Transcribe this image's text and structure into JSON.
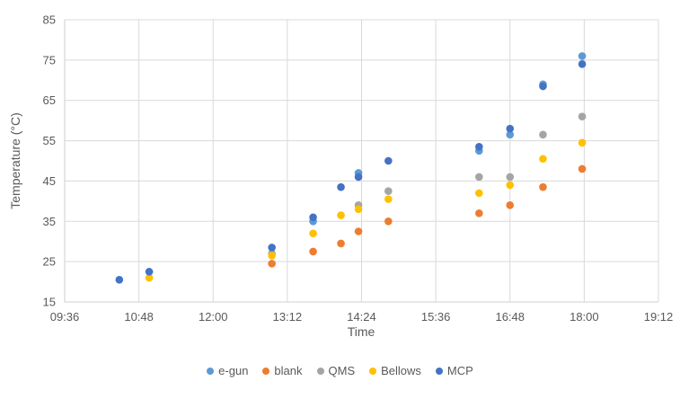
{
  "chart_data": {
    "type": "scatter",
    "title": "",
    "xlabel": "Time",
    "ylabel": "Temperature (°C)",
    "x_tick_labels": [
      "09:36",
      "10:48",
      "12:00",
      "13:12",
      "14:24",
      "15:36",
      "16:48",
      "18:00",
      "19:12"
    ],
    "x_axis_minutes": [
      576,
      1152
    ],
    "y_ticks": [
      15,
      25,
      35,
      45,
      55,
      65,
      75,
      85
    ],
    "ylim": [
      15,
      85
    ],
    "grid": true,
    "legend_position": "bottom",
    "marker": "circle",
    "colors": {
      "e-gun": "#5B9BD5",
      "blank": "#ED7D31",
      "QMS": "#A5A5A5",
      "Bellows": "#FFC000",
      "MCP": "#4472C4"
    },
    "text_color": "#595959",
    "gridline_color": "#D9D9D9",
    "axis_line_color": "#D0CECE",
    "series": [
      {
        "name": "e-gun",
        "color": "#5B9BD5",
        "points": [
          [
            "13:37",
            35
          ],
          [
            "14:21",
            47
          ],
          [
            "16:18",
            52.5
          ],
          [
            "16:48",
            56.5
          ],
          [
            "17:20",
            69
          ],
          [
            "17:58",
            76
          ]
        ]
      },
      {
        "name": "blank",
        "color": "#ED7D31",
        "points": [
          [
            "12:57",
            24.5
          ],
          [
            "13:37",
            27.5
          ],
          [
            "14:04",
            29.5
          ],
          [
            "14:21",
            32.5
          ],
          [
            "14:50",
            35
          ],
          [
            "16:18",
            37
          ],
          [
            "16:48",
            39
          ],
          [
            "17:20",
            43.5
          ],
          [
            "17:58",
            48
          ]
        ]
      },
      {
        "name": "QMS",
        "color": "#A5A5A5",
        "points": [
          [
            "12:57",
            27
          ],
          [
            "14:21",
            39
          ],
          [
            "14:50",
            42.5
          ],
          [
            "16:18",
            46
          ],
          [
            "16:48",
            46
          ],
          [
            "17:20",
            56.5
          ],
          [
            "17:58",
            61
          ]
        ]
      },
      {
        "name": "Bellows",
        "color": "#FFC000",
        "points": [
          [
            "10:58",
            21
          ],
          [
            "12:57",
            26.5
          ],
          [
            "13:37",
            32
          ],
          [
            "14:04",
            36.5
          ],
          [
            "14:21",
            38
          ],
          [
            "14:50",
            40.5
          ],
          [
            "16:18",
            42
          ],
          [
            "16:48",
            44
          ],
          [
            "17:20",
            50.5
          ],
          [
            "17:58",
            54.5
          ]
        ]
      },
      {
        "name": "MCP",
        "color": "#4472C4",
        "points": [
          [
            "10:29",
            20.5
          ],
          [
            "10:58",
            22.5
          ],
          [
            "12:57",
            28.5
          ],
          [
            "13:37",
            36
          ],
          [
            "14:04",
            43.5
          ],
          [
            "14:21",
            46
          ],
          [
            "14:50",
            50
          ],
          [
            "16:18",
            53.5
          ],
          [
            "16:48",
            58
          ],
          [
            "17:20",
            68.5
          ],
          [
            "17:58",
            74
          ]
        ]
      }
    ]
  }
}
